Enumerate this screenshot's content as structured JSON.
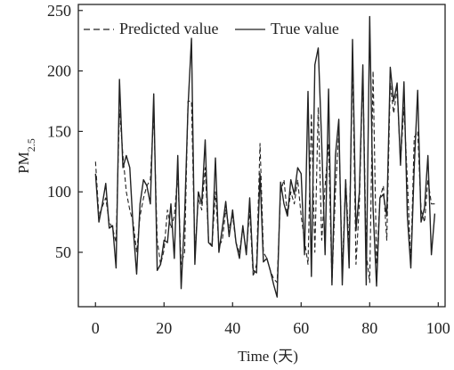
{
  "chart_data": {
    "type": "line",
    "xlabel": "Time (天)",
    "ylabel_main": "PM",
    "ylabel_sub": "2.5",
    "xlim": [
      -5,
      102
    ],
    "ylim": [
      5,
      255
    ],
    "xticks": [
      0,
      20,
      40,
      60,
      80,
      100
    ],
    "yticks": [
      50,
      100,
      150,
      200,
      250
    ],
    "legend_position": "top-left",
    "series": [
      {
        "name": "Predicted value",
        "style": "dashed",
        "x": [
          0,
          1,
          2,
          3,
          4,
          5,
          6,
          7,
          8,
          9,
          10,
          11,
          12,
          13,
          14,
          15,
          16,
          17,
          18,
          19,
          20,
          21,
          22,
          23,
          24,
          25,
          26,
          27,
          28,
          29,
          30,
          31,
          32,
          33,
          34,
          35,
          36,
          37,
          38,
          39,
          40,
          41,
          42,
          43,
          44,
          45,
          46,
          47,
          48,
          49,
          50,
          51,
          52,
          53,
          54,
          55,
          56,
          57,
          58,
          59,
          60,
          61,
          62,
          63,
          64,
          65,
          66,
          67,
          68,
          69,
          70,
          71,
          72,
          73,
          74,
          75,
          76,
          77,
          78,
          79,
          80,
          81,
          82,
          83,
          84,
          85,
          86,
          87,
          88,
          89,
          90,
          91,
          92,
          93,
          94,
          95,
          96,
          97,
          98,
          99
        ],
        "values": [
          125,
          80,
          88,
          95,
          75,
          70,
          58,
          168,
          130,
          100,
          85,
          75,
          50,
          80,
          95,
          105,
          110,
          165,
          60,
          40,
          52,
          85,
          70,
          80,
          115,
          40,
          50,
          175,
          175,
          50,
          95,
          85,
          120,
          60,
          55,
          100,
          55,
          60,
          85,
          70,
          80,
          58,
          50,
          70,
          50,
          85,
          30,
          40,
          140,
          50,
          45,
          35,
          28,
          25,
          100,
          110,
          80,
          100,
          90,
          110,
          80,
          60,
          40,
          165,
          50,
          170,
          60,
          105,
          140,
          25,
          100,
          150,
          35,
          110,
          55,
          210,
          40,
          90,
          200,
          50,
          25,
          200,
          40,
          95,
          105,
          60,
          190,
          165,
          185,
          125,
          170,
          110,
          40,
          145,
          150,
          85,
          75,
          110,
          90,
          90
        ]
      },
      {
        "name": "True value",
        "style": "solid",
        "x": [
          0,
          1,
          2,
          3,
          4,
          5,
          6,
          7,
          8,
          9,
          10,
          11,
          12,
          13,
          14,
          15,
          16,
          17,
          18,
          19,
          20,
          21,
          22,
          23,
          24,
          25,
          26,
          27,
          28,
          29,
          30,
          31,
          32,
          33,
          34,
          35,
          36,
          37,
          38,
          39,
          40,
          41,
          42,
          43,
          44,
          45,
          46,
          47,
          48,
          49,
          50,
          51,
          52,
          53,
          54,
          55,
          56,
          57,
          58,
          59,
          60,
          61,
          62,
          63,
          64,
          65,
          66,
          67,
          68,
          69,
          70,
          71,
          72,
          73,
          74,
          75,
          76,
          77,
          78,
          79,
          80,
          81,
          82,
          83,
          84,
          85,
          86,
          87,
          88,
          89,
          90,
          91,
          92,
          93,
          94,
          95,
          96,
          97,
          98,
          99
        ],
        "values": [
          115,
          75,
          90,
          107,
          70,
          72,
          37,
          193,
          120,
          130,
          120,
          70,
          32,
          90,
          110,
          105,
          90,
          181,
          35,
          40,
          60,
          58,
          90,
          45,
          130,
          20,
          80,
          170,
          227,
          40,
          100,
          90,
          143,
          58,
          55,
          128,
          50,
          70,
          92,
          63,
          85,
          58,
          45,
          72,
          48,
          95,
          35,
          33,
          115,
          42,
          45,
          35,
          23,
          13,
          108,
          90,
          80,
          110,
          98,
          120,
          115,
          48,
          183,
          30,
          205,
          219,
          140,
          48,
          185,
          23,
          130,
          160,
          23,
          110,
          37,
          226,
          68,
          100,
          205,
          23,
          245,
          86,
          22,
          95,
          98,
          80,
          203,
          175,
          190,
          122,
          191,
          80,
          37,
          120,
          184,
          75,
          87,
          130,
          48,
          82
        ]
      }
    ]
  }
}
